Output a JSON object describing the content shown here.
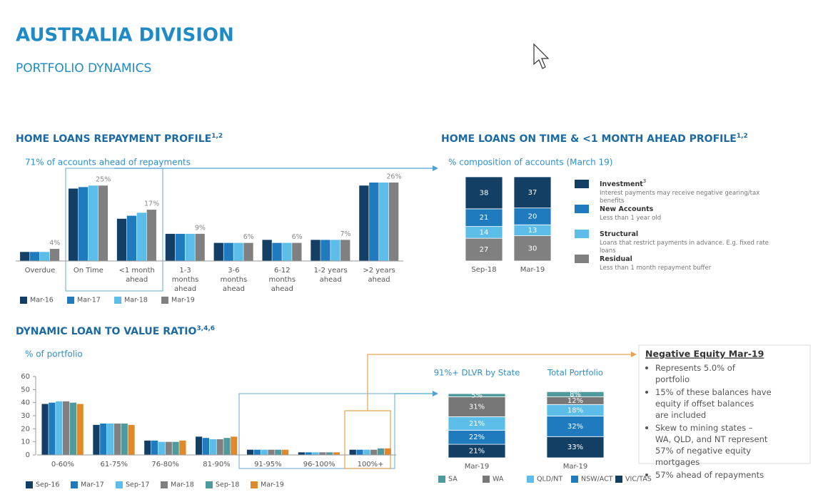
{
  "header": {
    "title": "AUSTRALIA DIVISION",
    "subtitle": "PORTFOLIO DYNAMICS"
  },
  "chart_data": [
    {
      "type": "bar",
      "title": "HOME LOANS REPAYMENT PROFILE",
      "title_note": "1,2",
      "subtitle": "71% of accounts ahead of repayments",
      "categories": [
        "Overdue",
        "On Time",
        "<1 month ahead",
        "1-3 months ahead",
        "3-6 months ahead",
        "6-12 months ahead",
        "1-2 years ahead",
        ">2 years ahead"
      ],
      "series": [
        {
          "name": "Mar-16",
          "color": "#123f63",
          "values": [
            3,
            24,
            14,
            9,
            6,
            7,
            7,
            25
          ]
        },
        {
          "name": "Mar-17",
          "color": "#1f7bbd",
          "values": [
            3,
            24.5,
            15,
            9,
            6,
            6,
            7,
            26
          ]
        },
        {
          "name": "Mar-18",
          "color": "#5cbde9",
          "values": [
            3,
            25,
            16,
            9,
            6,
            6,
            7,
            26
          ]
        },
        {
          "name": "Mar-19",
          "color": "#808080",
          "values": [
            4,
            25,
            17,
            9,
            6,
            6,
            7,
            26
          ],
          "value_labels": [
            "4%",
            "25%",
            "17%",
            "9%",
            "6%",
            "6%",
            "7%",
            "26%"
          ]
        }
      ]
    },
    {
      "type": "stacked-bar",
      "title": "HOME LOANS ON TIME & <1 MONTH AHEAD PROFILE",
      "title_note": "1,2",
      "subtitle": "% composition of accounts (March 19)",
      "categories": [
        "Sep-18",
        "Mar-19"
      ],
      "series": [
        {
          "name": "Investment",
          "note": "3",
          "description": "Interest payments may receive negative gearing/tax benefits",
          "color": "#123f63",
          "values": [
            38,
            37
          ]
        },
        {
          "name": "New Accounts",
          "description": "Less than 1 year old",
          "color": "#1f7bbd",
          "values": [
            21,
            20
          ]
        },
        {
          "name": "Structural",
          "description": "Loans that restrict payments in advance. E.g. fixed rate loans",
          "color": "#5cbde9",
          "values": [
            14,
            13
          ]
        },
        {
          "name": "Residual",
          "description": "Less than 1 month repayment buffer",
          "color": "#808080",
          "values": [
            27,
            30
          ]
        }
      ]
    },
    {
      "type": "bar",
      "title": "DYNAMIC LOAN TO VALUE RATIO",
      "title_note": "3,4,6",
      "subtitle": "% of portfolio",
      "categories": [
        "0-60%",
        "61-75%",
        "76-80%",
        "81-90%",
        "91-95%",
        "96-100%",
        "100%+"
      ],
      "ylim": [
        0,
        60
      ],
      "yticks": [
        0,
        10,
        20,
        30,
        40,
        50,
        60
      ],
      "series": [
        {
          "name": "Sep-16",
          "color": "#123f63",
          "values": [
            39,
            23,
            11,
            14,
            4,
            2,
            4
          ]
        },
        {
          "name": "Mar-17",
          "color": "#1f7bbd",
          "values": [
            40,
            24,
            11,
            13,
            4,
            2,
            4
          ]
        },
        {
          "name": "Sep-17",
          "color": "#5cbde9",
          "values": [
            41,
            24,
            10,
            12,
            4,
            2,
            4
          ]
        },
        {
          "name": "Mar-18",
          "color": "#808080",
          "values": [
            41,
            24,
            10,
            12,
            4,
            2,
            4
          ]
        },
        {
          "name": "Sep-18",
          "color": "#4f9a9c",
          "values": [
            40,
            24,
            10,
            13,
            4,
            2,
            5
          ]
        },
        {
          "name": "Mar-19",
          "color": "#e0892a",
          "values": [
            39,
            23,
            11,
            14,
            4,
            2,
            5
          ]
        }
      ]
    },
    {
      "type": "stacked-bar",
      "group_titles": [
        "91%+ DLVR by State",
        "Total Portfolio"
      ],
      "categories": [
        "Mar-19",
        "Mar-19"
      ],
      "series": [
        {
          "name": "SA",
          "color": "#4f9a9c",
          "values": [
            5,
            8
          ],
          "value_labels": [
            "5%",
            "8%"
          ]
        },
        {
          "name": "WA",
          "color": "#777777",
          "values": [
            31,
            12
          ],
          "value_labels": [
            "31%",
            "12%"
          ]
        },
        {
          "name": "QLD/NT",
          "color": "#5cbde9",
          "values": [
            21,
            18
          ],
          "value_labels": [
            "21%",
            "18%"
          ]
        },
        {
          "name": "NSW/ACT",
          "color": "#1f7bbd",
          "values": [
            22,
            32
          ],
          "value_labels": [
            "22%",
            "32%"
          ]
        },
        {
          "name": "VIC/TAS",
          "color": "#123f63",
          "values": [
            21,
            33
          ],
          "value_labels": [
            "21%",
            "33%"
          ]
        }
      ]
    }
  ],
  "negative_equity": {
    "title": "Negative Equity Mar-19",
    "items": [
      "Represents 5.0% of portfolio",
      "15% of these balances have equity if offset balances are included",
      "Skew to mining states – WA, QLD, and NT represent 57% of negative equity mortgages",
      "57% ahead of repayments"
    ]
  }
}
